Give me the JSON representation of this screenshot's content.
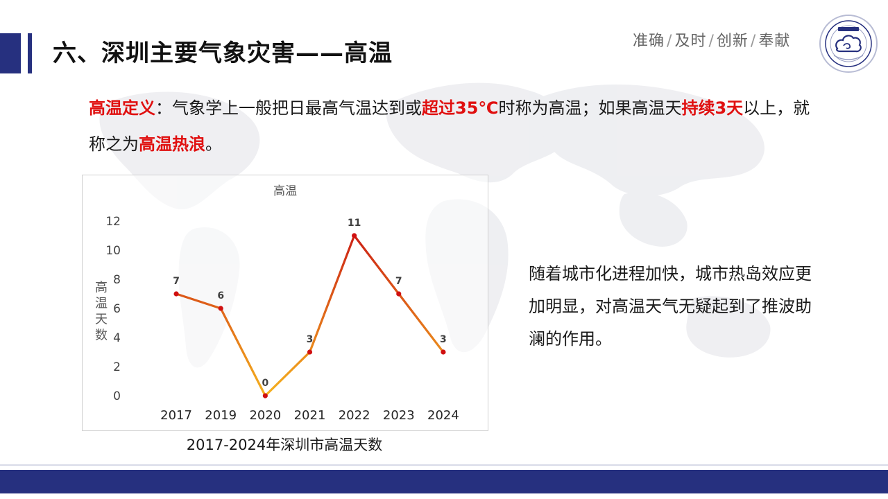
{
  "header": {
    "title": "六、深圳主要气象灾害——高温",
    "slogan": [
      "准确",
      "及时",
      "创新",
      "奉献"
    ],
    "logo_icon": "meteorological-bureau-emblem-icon"
  },
  "definition": {
    "term": "高温定义",
    "part1": "：气象学上一般把日最高气温达到或",
    "emph1": "超过35℃",
    "part2": "时称为高温；如果高温天",
    "emph2": "持续3天",
    "part3": "以上，就称之为",
    "emph3": "高温热浪",
    "part4": "。"
  },
  "side_text": "随着城市化进程加快，城市热岛效应更加明显，对高温天气无疑起到了推波助澜的作用。",
  "chart_caption": "2017-2024年深圳市高温天数",
  "colors": {
    "brand_navy": "#26307f",
    "emphasis_red": "#e01010",
    "line_high": "#c81414",
    "line_low": "#f5b21e",
    "marker": "#d01010"
  },
  "chart_data": {
    "type": "line",
    "title": "高温",
    "ylabel": "高温天数",
    "xlabel": "",
    "categories": [
      "2017",
      "2019",
      "2020",
      "2021",
      "2022",
      "2023",
      "2024"
    ],
    "values": [
      7,
      6,
      0,
      3,
      11,
      7,
      3
    ],
    "ylim": [
      0,
      12
    ],
    "yticks": [
      0,
      2,
      4,
      6,
      8,
      10,
      12
    ],
    "data_labels": true,
    "grid": false,
    "legend": "none"
  }
}
